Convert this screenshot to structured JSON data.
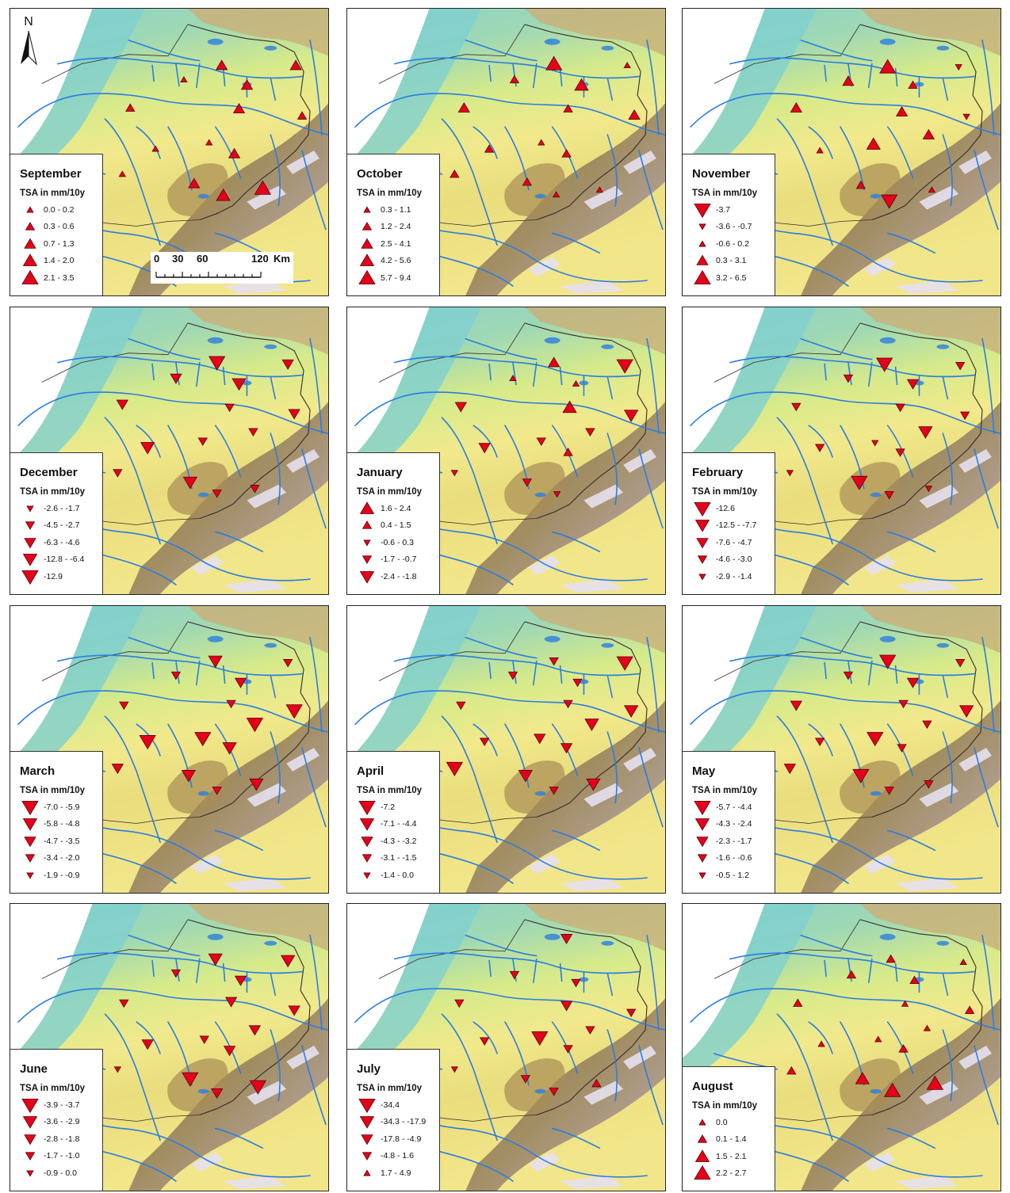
{
  "unit_label": "TSA in mm/10y",
  "north_label": "N",
  "scale_bar": {
    "labels": [
      "0",
      "30",
      "60",
      "120"
    ],
    "unit": "Km"
  },
  "colors": {
    "symbol_fill": "#e4001b",
    "symbol_stroke": "#5a0008",
    "river": "#2a7de1",
    "border": "#3a2a2a"
  },
  "panels": [
    {
      "month": "September",
      "classes": [
        {
          "label": "0.0 - 0.2",
          "dir": "up",
          "size": 1
        },
        {
          "label": "0.3 - 0.6",
          "dir": "up",
          "size": 2
        },
        {
          "label": "0.7 - 1.3",
          "dir": "up",
          "size": 3
        },
        {
          "label": "1.4 - 2.0",
          "dir": "up",
          "size": 4
        },
        {
          "label": "2.1 - 3.5",
          "dir": "up",
          "size": 5
        }
      ]
    },
    {
      "month": "October",
      "classes": [
        {
          "label": "0.3 - 1.1",
          "dir": "up",
          "size": 1
        },
        {
          "label": "1.2 - 2.4",
          "dir": "up",
          "size": 2
        },
        {
          "label": "2.5 - 4.1",
          "dir": "up",
          "size": 3
        },
        {
          "label": "4.2 - 5.6",
          "dir": "up",
          "size": 4
        },
        {
          "label": "5.7 - 9.4",
          "dir": "up",
          "size": 5
        }
      ]
    },
    {
      "month": "November",
      "classes": [
        {
          "label": "-3.7",
          "dir": "down",
          "size": 5
        },
        {
          "label": "-3.6 - -0.7",
          "dir": "down",
          "size": 1
        },
        {
          "label": "-0.6 - 0.2",
          "dir": "up",
          "size": 1
        },
        {
          "label": "0.3 - 3.1",
          "dir": "up",
          "size": 3
        },
        {
          "label": "3.2 - 6.5",
          "dir": "up",
          "size": 5
        }
      ]
    },
    {
      "month": "December",
      "classes": [
        {
          "label": "-2.6 - -1.7",
          "dir": "down",
          "size": 1
        },
        {
          "label": "-4.5 - -2.7",
          "dir": "down",
          "size": 2
        },
        {
          "label": "-6.3 - -4.6",
          "dir": "down",
          "size": 3
        },
        {
          "label": "-12.8 - -6.4",
          "dir": "down",
          "size": 4
        },
        {
          "label": "-12.9",
          "dir": "down",
          "size": 5
        }
      ]
    },
    {
      "month": "January",
      "classes": [
        {
          "label": "1.6 - 2.4",
          "dir": "up",
          "size": 4
        },
        {
          "label": "0.4 - 1.5",
          "dir": "up",
          "size": 2
        },
        {
          "label": "-0.6 - 0.3",
          "dir": "down",
          "size": 1
        },
        {
          "label": "-1.7 - -0.7",
          "dir": "down",
          "size": 2
        },
        {
          "label": "-2.4 - -1.8",
          "dir": "down",
          "size": 4
        }
      ]
    },
    {
      "month": "February",
      "classes": [
        {
          "label": "-12.6",
          "dir": "down",
          "size": 5
        },
        {
          "label": "-12.5 - -7.7",
          "dir": "down",
          "size": 4
        },
        {
          "label": "-7.6 - -4.7",
          "dir": "down",
          "size": 3
        },
        {
          "label": "-4.6 - -3.0",
          "dir": "down",
          "size": 2
        },
        {
          "label": "-2.9 - -1.4",
          "dir": "down",
          "size": 1
        }
      ]
    },
    {
      "month": "March",
      "classes": [
        {
          "label": "-7.0 - -5.9",
          "dir": "down",
          "size": 5
        },
        {
          "label": "-5.8 - -4.8",
          "dir": "down",
          "size": 4
        },
        {
          "label": "-4.7 - -3.5",
          "dir": "down",
          "size": 3
        },
        {
          "label": "-3.4 - -2.0",
          "dir": "down",
          "size": 2
        },
        {
          "label": "-1.9 - -0.9",
          "dir": "down",
          "size": 1
        }
      ]
    },
    {
      "month": "April",
      "classes": [
        {
          "label": "-7.2",
          "dir": "down",
          "size": 5
        },
        {
          "label": "-7.1 - -4.4",
          "dir": "down",
          "size": 4
        },
        {
          "label": "-4.3 - -3.2",
          "dir": "down",
          "size": 3
        },
        {
          "label": "-3.1 - -1.5",
          "dir": "down",
          "size": 2
        },
        {
          "label": "-1.4 - 0.0",
          "dir": "down",
          "size": 1
        }
      ]
    },
    {
      "month": "May",
      "classes": [
        {
          "label": "-5.7 - -4.4",
          "dir": "down",
          "size": 5
        },
        {
          "label": "-4.3 - -2.4",
          "dir": "down",
          "size": 4
        },
        {
          "label": "-2.3 - -1.7",
          "dir": "down",
          "size": 3
        },
        {
          "label": "-1.6 - -0.6",
          "dir": "down",
          "size": 2
        },
        {
          "label": "-0.5 - 1.2",
          "dir": "down",
          "size": 1
        }
      ]
    },
    {
      "month": "June",
      "classes": [
        {
          "label": "-3.9 - -3.7",
          "dir": "down",
          "size": 5
        },
        {
          "label": "-3.6 - -2.9",
          "dir": "down",
          "size": 4
        },
        {
          "label": "-2.8 - -1.8",
          "dir": "down",
          "size": 3
        },
        {
          "label": "-1.7 - -1.0",
          "dir": "down",
          "size": 2
        },
        {
          "label": "-0.9 - 0.0",
          "dir": "down",
          "size": 1
        }
      ]
    },
    {
      "month": "July",
      "classes": [
        {
          "label": "-34.4",
          "dir": "down",
          "size": 5
        },
        {
          "label": "-34.3 - -17.9",
          "dir": "down",
          "size": 4
        },
        {
          "label": "-17.8 - -4.9",
          "dir": "down",
          "size": 3
        },
        {
          "label": "-4.8 - 1.6",
          "dir": "down",
          "size": 2
        },
        {
          "label": "1.7 - 4.9",
          "dir": "up",
          "size": 1
        }
      ]
    },
    {
      "month": "August",
      "classes": [
        {
          "label": "0.0",
          "dir": "up",
          "size": 1
        },
        {
          "label": "0.1 - 1.4",
          "dir": "up",
          "size": 2
        },
        {
          "label": "1.5 - 2.1",
          "dir": "up",
          "size": 4
        },
        {
          "label": "2.2 - 2.7",
          "dir": "up",
          "size": 5
        }
      ]
    }
  ]
}
